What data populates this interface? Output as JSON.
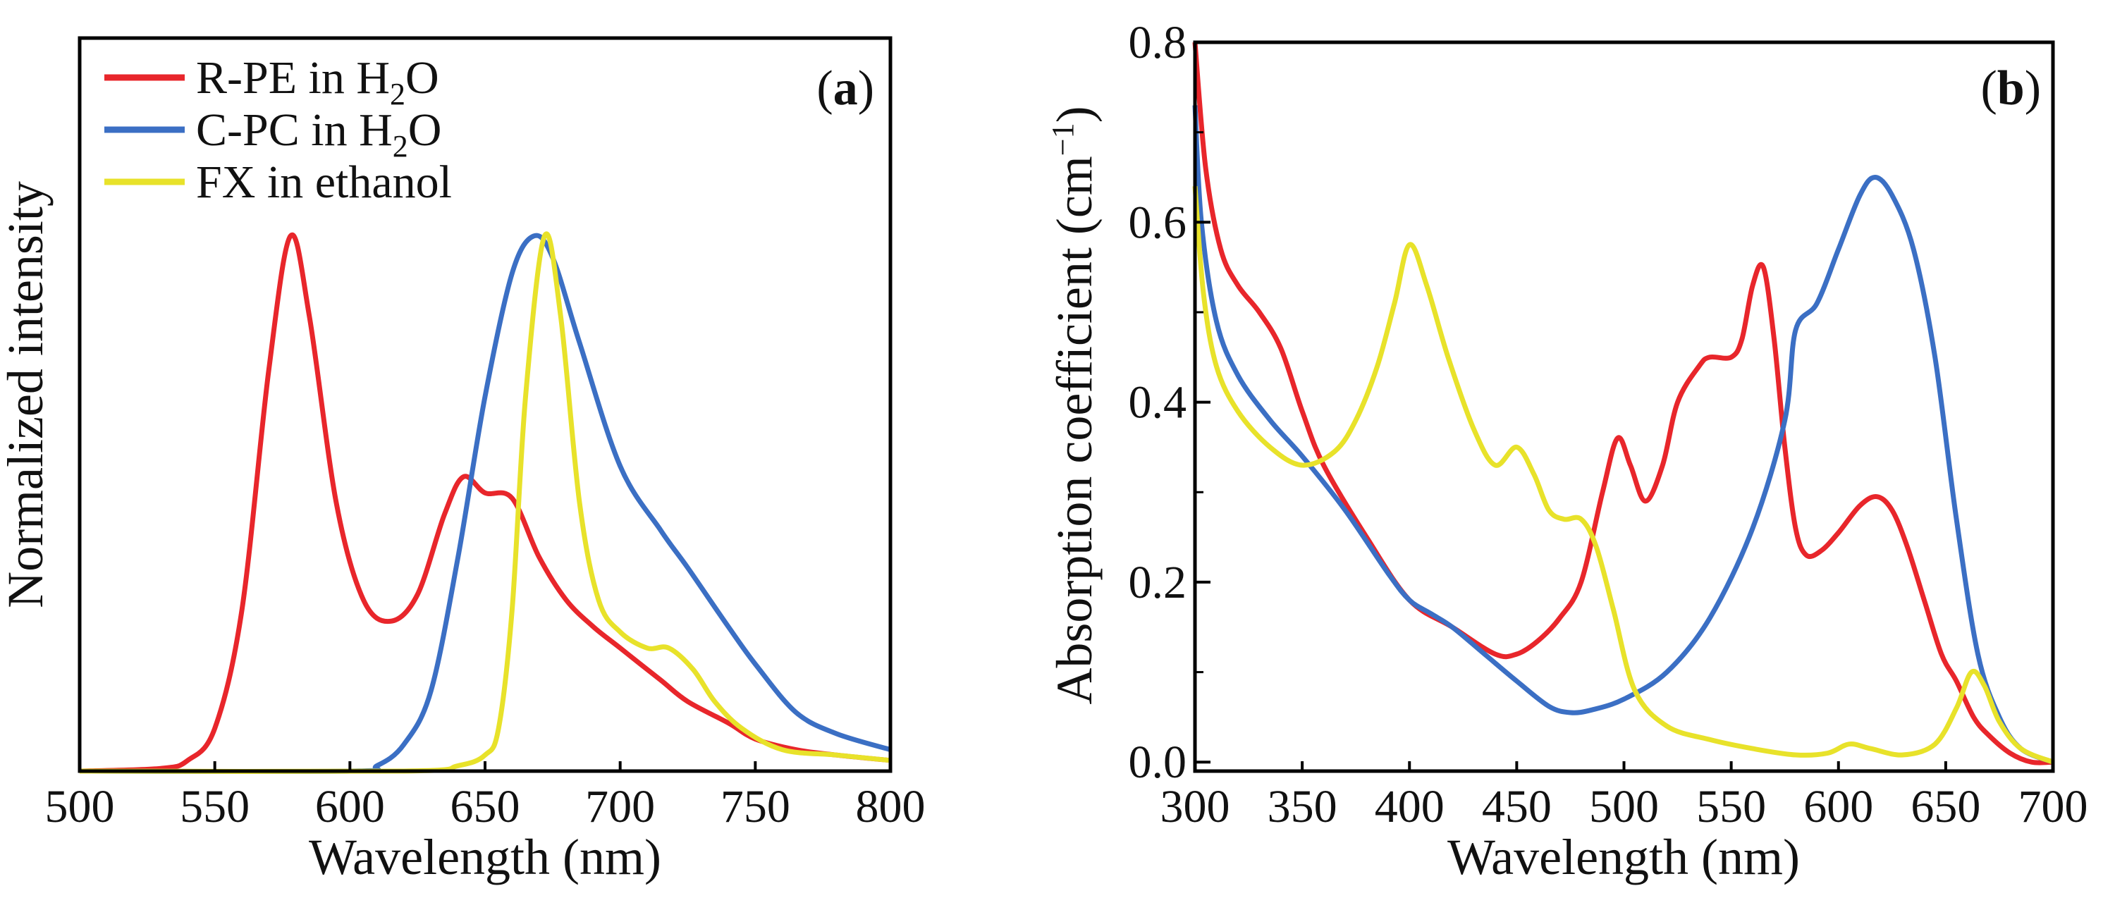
{
  "chart_data": [
    {
      "type": "line",
      "panel_label": "(a)",
      "panel_letter": "a",
      "xlabel": "Wavelength (nm)",
      "ylabel": "Normalized intensity",
      "xlim": [
        500,
        800
      ],
      "ylim": [
        0,
        1.37
      ],
      "xticks": [
        500,
        550,
        600,
        650,
        700,
        750,
        800
      ],
      "yticks": [],
      "grid": false,
      "legend_position": "top-left",
      "series": [
        {
          "name": "R-PE in H2O",
          "label_main": "R-PE in H",
          "label_sub": "2",
          "label_tail": "O",
          "color": "#e8262b",
          "x": [
            500,
            530,
            540,
            550,
            560,
            570,
            578,
            585,
            595,
            605,
            615,
            625,
            635,
            642,
            650,
            660,
            670,
            680,
            690,
            700,
            715,
            725,
            740,
            750,
            765,
            780,
            800
          ],
          "y": [
            0,
            0.005,
            0.02,
            0.08,
            0.3,
            0.75,
            1.0,
            0.85,
            0.5,
            0.32,
            0.28,
            0.33,
            0.48,
            0.55,
            0.52,
            0.51,
            0.4,
            0.32,
            0.27,
            0.23,
            0.17,
            0.13,
            0.09,
            0.06,
            0.04,
            0.03,
            0.02
          ]
        },
        {
          "name": "C-PC in H2O",
          "label_main": "C-PC in H",
          "label_sub": "2",
          "label_tail": "O",
          "color": "#3b6fc4",
          "x": [
            500,
            600,
            610,
            620,
            630,
            640,
            650,
            660,
            668,
            675,
            685,
            700,
            715,
            725,
            740,
            750,
            765,
            780,
            800
          ],
          "y": [
            0,
            0,
            0.01,
            0.05,
            0.15,
            0.4,
            0.7,
            0.93,
            1.0,
            0.96,
            0.8,
            0.57,
            0.45,
            0.38,
            0.27,
            0.2,
            0.11,
            0.07,
            0.04
          ]
        },
        {
          "name": "FX in ethanol",
          "label_main": "FX in ethanol",
          "label_sub": "",
          "label_tail": "",
          "color": "#e8e22a",
          "x": [
            500,
            620,
            640,
            650,
            655,
            660,
            665,
            672,
            678,
            685,
            692,
            700,
            710,
            718,
            727,
            735,
            745,
            760,
            780,
            800
          ],
          "y": [
            0,
            0,
            0.01,
            0.03,
            0.08,
            0.3,
            0.7,
            1.0,
            0.85,
            0.5,
            0.32,
            0.26,
            0.23,
            0.23,
            0.19,
            0.13,
            0.08,
            0.04,
            0.03,
            0.02
          ]
        }
      ]
    },
    {
      "type": "line",
      "panel_label": "(b)",
      "panel_letter": "b",
      "xlabel": "Wavelength (nm)",
      "ylabel_main": "Absorption coefficient (cm",
      "ylabel_sup": "−1",
      "ylabel_tail": ")",
      "xlim": [
        300,
        700
      ],
      "ylim": [
        -0.01,
        0.8
      ],
      "xticks": [
        300,
        350,
        400,
        450,
        500,
        550,
        600,
        650,
        700
      ],
      "yticks": [
        "0.0",
        "0.2",
        "0.4",
        "0.6",
        "0.8"
      ],
      "grid": false,
      "series": [
        {
          "name": "R-PE in H2O",
          "color": "#e8262b",
          "x": [
            300,
            305,
            312,
            320,
            330,
            340,
            350,
            360,
            380,
            400,
            420,
            440,
            450,
            460,
            470,
            480,
            490,
            497,
            503,
            510,
            518,
            525,
            535,
            540,
            550,
            555,
            560,
            565,
            570,
            575,
            580,
            585,
            592,
            600,
            610,
            618,
            625,
            632,
            640,
            648,
            655,
            663,
            670,
            680,
            690,
            700
          ],
          "y": [
            0.8,
            0.66,
            0.57,
            0.53,
            0.5,
            0.46,
            0.39,
            0.33,
            0.25,
            0.18,
            0.15,
            0.12,
            0.12,
            0.135,
            0.16,
            0.2,
            0.3,
            0.36,
            0.33,
            0.29,
            0.33,
            0.4,
            0.44,
            0.45,
            0.45,
            0.47,
            0.53,
            0.55,
            0.47,
            0.35,
            0.26,
            0.23,
            0.235,
            0.255,
            0.285,
            0.295,
            0.28,
            0.24,
            0.18,
            0.12,
            0.09,
            0.05,
            0.03,
            0.01,
            0.0,
            0.0
          ]
        },
        {
          "name": "C-PC in H2O",
          "color": "#3b6fc4",
          "x": [
            300,
            303,
            310,
            320,
            335,
            350,
            370,
            390,
            400,
            410,
            420,
            435,
            450,
            465,
            475,
            485,
            500,
            520,
            540,
            560,
            575,
            580,
            590,
            600,
            610,
            617,
            625,
            635,
            645,
            655,
            665,
            675,
            685,
            700
          ],
          "y": [
            0.73,
            0.6,
            0.49,
            0.43,
            0.38,
            0.34,
            0.28,
            0.21,
            0.18,
            0.165,
            0.15,
            0.12,
            0.09,
            0.062,
            0.055,
            0.058,
            0.07,
            0.1,
            0.16,
            0.26,
            0.38,
            0.48,
            0.51,
            0.57,
            0.63,
            0.65,
            0.63,
            0.57,
            0.45,
            0.27,
            0.12,
            0.05,
            0.015,
            0.0
          ]
        },
        {
          "name": "FX in ethanol",
          "color": "#e8e22a",
          "x": [
            300,
            304,
            310,
            320,
            335,
            350,
            365,
            375,
            385,
            393,
            400,
            408,
            418,
            430,
            440,
            450,
            458,
            465,
            472,
            480,
            487,
            495,
            505,
            520,
            540,
            560,
            580,
            595,
            605,
            615,
            630,
            645,
            655,
            662,
            668,
            675,
            685,
            700
          ],
          "y": [
            0.64,
            0.52,
            0.44,
            0.39,
            0.35,
            0.33,
            0.345,
            0.38,
            0.44,
            0.51,
            0.575,
            0.53,
            0.45,
            0.37,
            0.33,
            0.35,
            0.32,
            0.28,
            0.27,
            0.27,
            0.24,
            0.17,
            0.08,
            0.04,
            0.025,
            0.015,
            0.008,
            0.01,
            0.02,
            0.015,
            0.008,
            0.02,
            0.06,
            0.1,
            0.085,
            0.045,
            0.015,
            0.0
          ]
        }
      ]
    }
  ]
}
